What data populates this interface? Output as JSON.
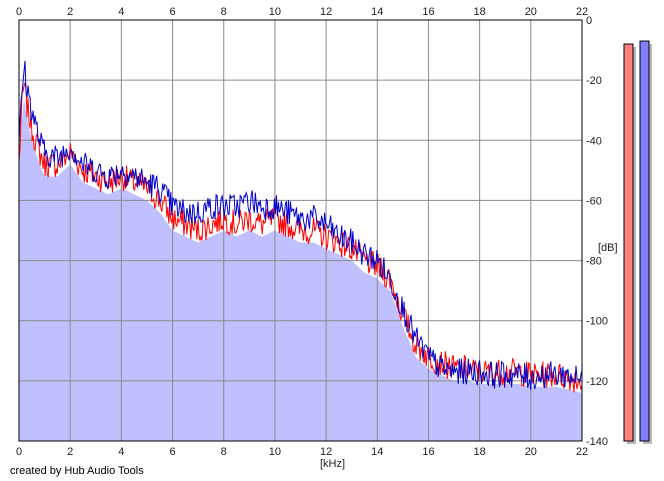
{
  "chart_data": {
    "type": "line",
    "title": "",
    "xlabel": "[kHz]",
    "ylabel": "[dB]",
    "xlim": [
      0,
      22
    ],
    "ylim": [
      -140,
      0
    ],
    "x_ticks": [
      0,
      2,
      4,
      6,
      8,
      10,
      12,
      14,
      16,
      18,
      20,
      22
    ],
    "y_ticks": [
      0,
      -20,
      -40,
      -60,
      -80,
      -100,
      -120,
      -140
    ],
    "grid": true,
    "legend": "none",
    "series": [
      {
        "color": "#ff0000",
        "x": [
          0.0,
          0.1,
          0.2,
          0.3,
          0.5,
          0.8,
          1.0,
          1.5,
          2.0,
          2.5,
          3.0,
          3.5,
          4.0,
          4.5,
          5.0,
          5.5,
          6.0,
          6.5,
          7.0,
          7.5,
          8.0,
          8.5,
          9.0,
          9.5,
          10.0,
          10.5,
          11.0,
          11.5,
          12.0,
          12.5,
          13.0,
          13.5,
          14.0,
          14.5,
          15.0,
          15.5,
          16.0,
          16.5,
          17.0,
          17.5,
          18.0,
          18.5,
          19.0,
          19.5,
          20.0,
          20.5,
          21.0,
          21.5,
          22.0
        ],
        "values": [
          -48,
          -30,
          -22,
          -28,
          -36,
          -44,
          -48,
          -48,
          -44,
          -50,
          -52,
          -54,
          -52,
          -54,
          -56,
          -60,
          -66,
          -68,
          -70,
          -68,
          -66,
          -68,
          -66,
          -68,
          -66,
          -68,
          -70,
          -70,
          -72,
          -74,
          -76,
          -80,
          -82,
          -86,
          -98,
          -108,
          -112,
          -114,
          -116,
          -116,
          -117,
          -117,
          -117,
          -117,
          -118,
          -118,
          -118,
          -119,
          -120
        ]
      },
      {
        "color": "#0000cc",
        "x": [
          0.0,
          0.1,
          0.2,
          0.3,
          0.5,
          0.8,
          1.0,
          1.5,
          2.0,
          2.5,
          3.0,
          3.5,
          4.0,
          4.5,
          5.0,
          5.5,
          6.0,
          6.5,
          7.0,
          7.5,
          8.0,
          8.5,
          9.0,
          9.5,
          10.0,
          10.5,
          11.0,
          11.5,
          12.0,
          12.5,
          13.0,
          13.5,
          14.0,
          14.5,
          15.0,
          15.5,
          16.0,
          16.5,
          17.0,
          17.5,
          18.0,
          18.5,
          19.0,
          19.5,
          20.0,
          20.5,
          21.0,
          21.5,
          22.0
        ],
        "values": [
          -40,
          -28,
          -15,
          -22,
          -30,
          -40,
          -44,
          -46,
          -42,
          -48,
          -50,
          -52,
          -50,
          -52,
          -54,
          -56,
          -62,
          -64,
          -64,
          -62,
          -62,
          -62,
          -60,
          -62,
          -62,
          -64,
          -66,
          -66,
          -68,
          -72,
          -74,
          -78,
          -80,
          -86,
          -96,
          -106,
          -112,
          -116,
          -117,
          -117,
          -117,
          -118,
          -118,
          -118,
          -119,
          -118,
          -118,
          -118,
          -120
        ]
      }
    ],
    "level_meters": [
      {
        "color": "#ff8080",
        "top_db": -8
      },
      {
        "color": "#8080ff",
        "top_db": -7
      }
    ]
  },
  "credit": "created by Hub Audio Tools"
}
